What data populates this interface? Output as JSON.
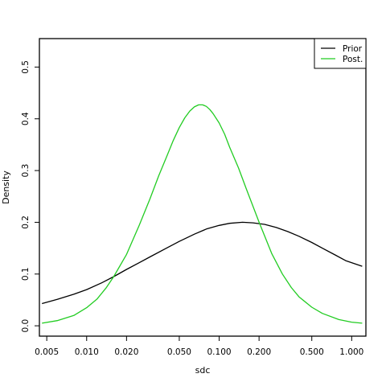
{
  "chart_data": {
    "type": "line",
    "xlabel": "sdc",
    "ylabel": "Density",
    "x_scale": "log",
    "xlim": [
      0.0044,
      1.28
    ],
    "ylim": [
      -0.02,
      0.555
    ],
    "x_ticks": [
      0.005,
      0.01,
      0.02,
      0.05,
      0.1,
      0.2,
      0.5,
      1.0
    ],
    "x_tick_labels": [
      "0.005",
      "0.010",
      "0.020",
      "0.050",
      "0.100",
      "0.200",
      "0.500",
      "1.000"
    ],
    "y_ticks": [
      0.0,
      0.1,
      0.2,
      0.3,
      0.4,
      0.5
    ],
    "y_tick_labels": [
      "0.0",
      "0.1",
      "0.2",
      "0.3",
      "0.4",
      "0.5"
    ],
    "grid": false,
    "legend_position": "top-right",
    "series": [
      {
        "name": "Prior",
        "color": "#000000",
        "x": [
          0.0046,
          0.006,
          0.008,
          0.01,
          0.013,
          0.016,
          0.02,
          0.025,
          0.03,
          0.04,
          0.05,
          0.065,
          0.08,
          0.1,
          0.12,
          0.15,
          0.18,
          0.22,
          0.27,
          0.33,
          0.4,
          0.5,
          0.6,
          0.75,
          0.9,
          1.2
        ],
        "y": [
          0.043,
          0.051,
          0.061,
          0.07,
          0.083,
          0.095,
          0.109,
          0.122,
          0.133,
          0.15,
          0.163,
          0.177,
          0.187,
          0.194,
          0.198,
          0.2,
          0.199,
          0.196,
          0.19,
          0.182,
          0.173,
          0.161,
          0.15,
          0.137,
          0.126,
          0.115
        ]
      },
      {
        "name": "Post.",
        "color": "#22cc22",
        "x": [
          0.0046,
          0.006,
          0.008,
          0.01,
          0.012,
          0.014,
          0.016,
          0.02,
          0.025,
          0.03,
          0.035,
          0.04,
          0.045,
          0.05,
          0.055,
          0.06,
          0.065,
          0.07,
          0.075,
          0.08,
          0.085,
          0.09,
          0.1,
          0.11,
          0.12,
          0.14,
          0.16,
          0.2,
          0.25,
          0.3,
          0.35,
          0.4,
          0.5,
          0.6,
          0.8,
          1.0,
          1.2
        ],
        "y": [
          0.005,
          0.01,
          0.02,
          0.035,
          0.052,
          0.073,
          0.095,
          0.138,
          0.195,
          0.245,
          0.29,
          0.326,
          0.358,
          0.383,
          0.402,
          0.415,
          0.423,
          0.427,
          0.427,
          0.424,
          0.418,
          0.41,
          0.392,
          0.37,
          0.345,
          0.305,
          0.265,
          0.2,
          0.139,
          0.1,
          0.074,
          0.056,
          0.036,
          0.024,
          0.012,
          0.007,
          0.005
        ]
      }
    ]
  }
}
